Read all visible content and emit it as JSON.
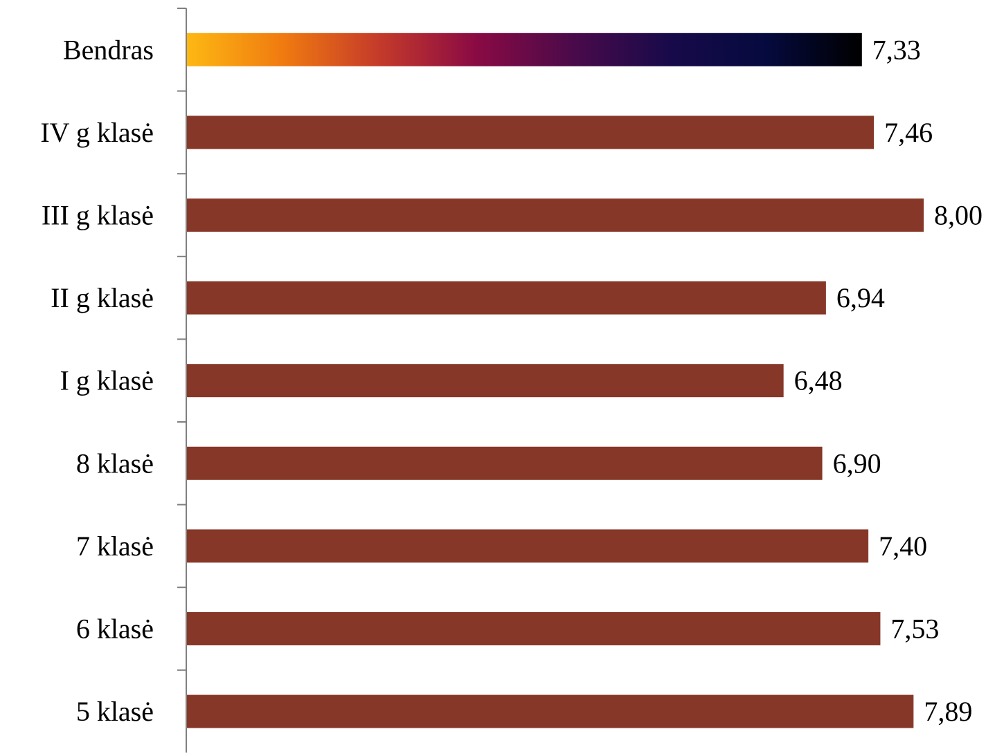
{
  "chart_data": {
    "type": "bar",
    "orientation": "horizontal",
    "categories": [
      "Bendras",
      "IV g klasė",
      "III g klasė",
      "II g klasė",
      "I g klasė",
      "8 klasė",
      "7 klasė",
      "6 klasė",
      "5 klasė"
    ],
    "values": [
      7.33,
      7.46,
      8.0,
      6.94,
      6.48,
      6.9,
      7.4,
      7.53,
      7.89
    ],
    "value_labels": [
      "7,33",
      "7,46",
      "8,00",
      "6,94",
      "6,48",
      "6,90",
      "7,40",
      "7,53",
      "7,89"
    ],
    "title": "",
    "xlabel": "",
    "ylabel": "",
    "xlim": [
      0,
      8
    ],
    "grid": false,
    "legend": "none",
    "bar_color": "#873728",
    "highlight_category": "Bendras",
    "highlight_gradient": [
      "#fdb813",
      "#f07a10",
      "#c43a2a",
      "#8a0a44",
      "#4a0a4a",
      "#180a4a",
      "#050a3e",
      "#000000"
    ],
    "axis_color": "#7f7f7f"
  }
}
